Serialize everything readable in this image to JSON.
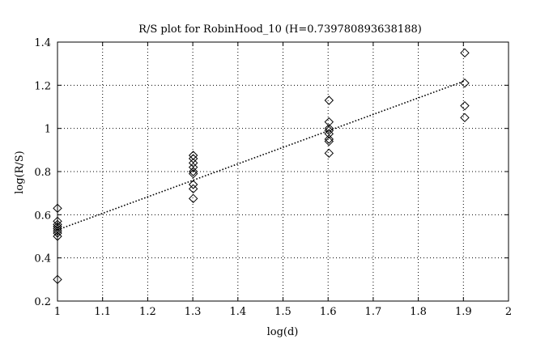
{
  "chart_data": {
    "type": "scatter",
    "title": "R/S plot for RobinHood_10 (H=0.739780893638188)",
    "xlabel": "log(d)",
    "ylabel": "log(R/S)",
    "xlim": [
      1,
      2
    ],
    "ylim": [
      0.2,
      1.4
    ],
    "xticks": [
      "1",
      "1.1",
      "1.2",
      "1.3",
      "1.4",
      "1.5",
      "1.6",
      "1.7",
      "1.8",
      "1.9",
      "2"
    ],
    "yticks": [
      "0.2",
      "0.4",
      "0.6",
      "0.8",
      "1",
      "1.2",
      "1.4"
    ],
    "grid": true,
    "marker": "diamond",
    "points": [
      {
        "x": 1,
        "y": 0.63
      },
      {
        "x": 1,
        "y": 0.57
      },
      {
        "x": 1,
        "y": 0.555
      },
      {
        "x": 1,
        "y": 0.545
      },
      {
        "x": 1,
        "y": 0.535
      },
      {
        "x": 1,
        "y": 0.525
      },
      {
        "x": 1,
        "y": 0.515
      },
      {
        "x": 1,
        "y": 0.5
      },
      {
        "x": 1,
        "y": 0.3
      },
      {
        "x": 1.301,
        "y": 0.875
      },
      {
        "x": 1.301,
        "y": 0.86
      },
      {
        "x": 1.301,
        "y": 0.84
      },
      {
        "x": 1.301,
        "y": 0.82
      },
      {
        "x": 1.301,
        "y": 0.8
      },
      {
        "x": 1.301,
        "y": 0.79
      },
      {
        "x": 1.301,
        "y": 0.74
      },
      {
        "x": 1.301,
        "y": 0.72
      },
      {
        "x": 1.301,
        "y": 0.675
      },
      {
        "x": 1.602,
        "y": 1.13
      },
      {
        "x": 1.602,
        "y": 1.03
      },
      {
        "x": 1.602,
        "y": 1.0
      },
      {
        "x": 1.602,
        "y": 0.99
      },
      {
        "x": 1.602,
        "y": 0.975
      },
      {
        "x": 1.602,
        "y": 0.95
      },
      {
        "x": 1.602,
        "y": 0.94
      },
      {
        "x": 1.602,
        "y": 0.885
      },
      {
        "x": 1.903,
        "y": 1.35
      },
      {
        "x": 1.903,
        "y": 1.21
      },
      {
        "x": 1.903,
        "y": 1.105
      },
      {
        "x": 1.903,
        "y": 1.05
      }
    ],
    "fit_line": {
      "x": [
        1,
        1.903
      ],
      "y": [
        0.53,
        1.22
      ],
      "style": "dotted"
    }
  }
}
